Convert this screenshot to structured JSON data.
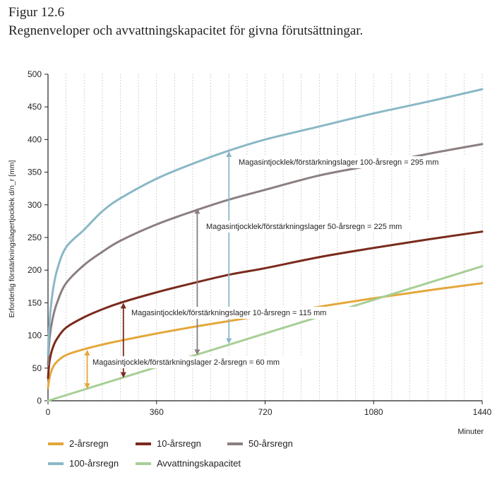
{
  "figure_label": "Figur 12.6",
  "title": "Regnenveloper och avvattningskapacitet för givna förutsättningar.",
  "chart_data": {
    "type": "line",
    "xlabel": "Minuter",
    "ylabel": "Erforderlig förstärkningslagertjocklek d/n_r [mm]",
    "xlim": [
      0,
      1440
    ],
    "ylim": [
      0,
      500
    ],
    "xticks": [
      0,
      360,
      720,
      1080,
      1440
    ],
    "yticks": [
      0,
      50,
      100,
      150,
      200,
      250,
      300,
      350,
      400,
      450,
      500
    ],
    "grid": "vertical dashed",
    "legend_position": "bottom",
    "series": [
      {
        "name": "2-årsregn",
        "color": "#e4a73a",
        "points": [
          [
            0,
            20
          ],
          [
            5,
            35
          ],
          [
            15,
            50
          ],
          [
            30,
            60
          ],
          [
            60,
            70
          ],
          [
            120,
            79
          ],
          [
            180,
            86
          ],
          [
            240,
            92
          ],
          [
            360,
            103
          ],
          [
            480,
            113
          ],
          [
            600,
            122
          ],
          [
            720,
            131
          ],
          [
            900,
            144
          ],
          [
            1080,
            157
          ],
          [
            1260,
            169
          ],
          [
            1440,
            180
          ]
        ]
      },
      {
        "name": "10-årsregn",
        "color": "#7a2a1c",
        "points": [
          [
            0,
            35
          ],
          [
            5,
            60
          ],
          [
            15,
            80
          ],
          [
            30,
            95
          ],
          [
            60,
            112
          ],
          [
            120,
            128
          ],
          [
            180,
            140
          ],
          [
            240,
            150
          ],
          [
            360,
            166
          ],
          [
            480,
            180
          ],
          [
            600,
            193
          ],
          [
            720,
            203
          ],
          [
            900,
            220
          ],
          [
            1080,
            234
          ],
          [
            1260,
            247
          ],
          [
            1440,
            259
          ]
        ]
      },
      {
        "name": "50-årsregn",
        "color": "#8b7f80",
        "points": [
          [
            0,
            55
          ],
          [
            5,
            95
          ],
          [
            15,
            125
          ],
          [
            30,
            150
          ],
          [
            60,
            180
          ],
          [
            120,
            208
          ],
          [
            180,
            228
          ],
          [
            240,
            245
          ],
          [
            360,
            270
          ],
          [
            480,
            290
          ],
          [
            600,
            308
          ],
          [
            720,
            323
          ],
          [
            900,
            345
          ],
          [
            1080,
            361
          ],
          [
            1260,
            378
          ],
          [
            1440,
            393
          ]
        ]
      },
      {
        "name": "100-årsregn",
        "color": "#8ab8c6",
        "points": [
          [
            0,
            70
          ],
          [
            5,
            120
          ],
          [
            15,
            165
          ],
          [
            30,
            200
          ],
          [
            60,
            235
          ],
          [
            120,
            262
          ],
          [
            180,
            290
          ],
          [
            240,
            310
          ],
          [
            360,
            340
          ],
          [
            480,
            363
          ],
          [
            600,
            383
          ],
          [
            720,
            400
          ],
          [
            900,
            420
          ],
          [
            1080,
            440
          ],
          [
            1260,
            458
          ],
          [
            1440,
            477
          ]
        ]
      },
      {
        "name": "Avvattningskapacitet",
        "color": "#a7cf96",
        "points": [
          [
            0,
            0
          ],
          [
            1440,
            206
          ]
        ]
      }
    ],
    "annotations": [
      {
        "text": "Magasintjocklek/förstärkningslager 100-årsregn = 295 mm",
        "x": 600,
        "from": 87,
        "to": 382,
        "color": "#8ab8c6"
      },
      {
        "text": "Magasintjocklek/förstärkningslager 50-årsregn = 225 mm",
        "x": 495,
        "from": 70,
        "to": 295,
        "color": "#8b7f80"
      },
      {
        "text": "Magasintjocklek/förstärkningslager 10-årsregn = 115 mm",
        "x": 250,
        "from": 35,
        "to": 150,
        "color": "#7a2a1c"
      },
      {
        "text": "Magasintjocklek/förstärkningslager 2-årsregn = 60 mm",
        "x": 130,
        "from": 18,
        "to": 78,
        "color": "#e4a73a"
      }
    ]
  }
}
